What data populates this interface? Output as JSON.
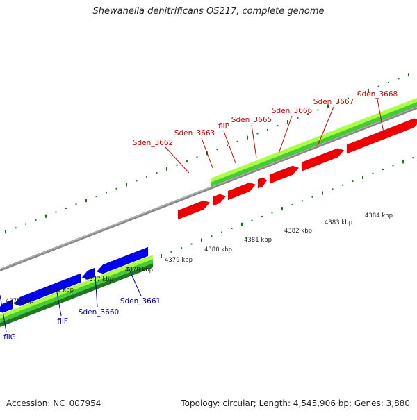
{
  "title": "Shewanella denitrificans OS217, complete genome",
  "footer": {
    "accession": "Accession: NC_007954",
    "summary": "Topology: circular; Length: 4,545,906 bp; Genes: 3,880"
  },
  "colors": {
    "forward_gene": "#ee0000",
    "reverse_gene": "#0000ee",
    "forward_label": "#cc0000",
    "reverse_label": "#0000aa",
    "tick": "#117711",
    "backbone": "#888888",
    "gc_light": "#aaff44",
    "gc_mid": "#44cc33",
    "gc_dark": "#227722"
  },
  "scale": {
    "ticks": [
      {
        "label": "4375 kbp"
      },
      {
        "label": "4376 kbp"
      },
      {
        "label": "4377 kbp"
      },
      {
        "label": "4378 kbp"
      },
      {
        "label": "4379 kbp"
      },
      {
        "label": "4380 kbp"
      },
      {
        "label": "4381 kbp"
      },
      {
        "label": "4382 kbp"
      },
      {
        "label": "4383 kbp"
      },
      {
        "label": "4384 kbp"
      }
    ]
  },
  "genes": {
    "forward": [
      {
        "name": "Sden_3662"
      },
      {
        "name": "Sden_3663"
      },
      {
        "name": "fliP"
      },
      {
        "name": "Sden_3665"
      },
      {
        "name": "Sden_3666"
      },
      {
        "name": "Sden_3667"
      },
      {
        "name": "Sden_3668"
      }
    ],
    "reverse": [
      {
        "name": "fliG"
      },
      {
        "name": "fliF"
      },
      {
        "name": "Sden_3660"
      },
      {
        "name": "Sden_3661"
      }
    ]
  }
}
